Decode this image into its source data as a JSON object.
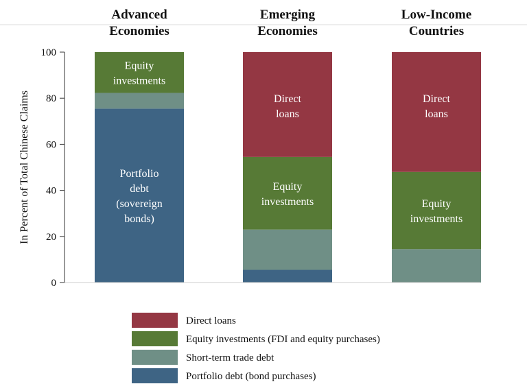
{
  "chart_data": {
    "type": "bar",
    "stacked": true,
    "categories": [
      [
        "Advanced",
        "Economies"
      ],
      [
        "Emerging",
        "Economies"
      ],
      [
        "Low-Income",
        "Countries"
      ]
    ],
    "ylabel": "In Percent of Total Chinese Claims",
    "ylim": [
      0,
      100
    ],
    "yticks": [
      0,
      20,
      40,
      60,
      80,
      100
    ],
    "grid": false,
    "legend_position": "bottom",
    "series": [
      {
        "name": "Portfolio debt (bond purchases)",
        "color": "#3e6484",
        "values": [
          75.5,
          5.5,
          0
        ],
        "bar_labels": [
          [
            "Portfolio",
            "debt",
            "(sovereign",
            "bonds)"
          ],
          null,
          null
        ]
      },
      {
        "name": "Short-term trade debt",
        "color": "#6f8f86",
        "values": [
          6.8,
          17.5,
          14.5
        ],
        "bar_labels": [
          null,
          null,
          null
        ]
      },
      {
        "name": "Equity investments (FDI and equity purchases)",
        "color": "#577a36",
        "values": [
          17.7,
          31.5,
          33.5
        ],
        "bar_labels": [
          [
            "Equity",
            "investments"
          ],
          [
            "Equity",
            "investments"
          ],
          [
            "Equity",
            "investments"
          ]
        ]
      },
      {
        "name": "Direct loans",
        "color": "#943743",
        "values": [
          0,
          45.5,
          52
        ],
        "bar_labels": [
          null,
          [
            "Direct",
            "loans"
          ],
          [
            "Direct",
            "loans"
          ]
        ]
      }
    ],
    "legend_order": [
      3,
      2,
      1,
      0
    ]
  }
}
